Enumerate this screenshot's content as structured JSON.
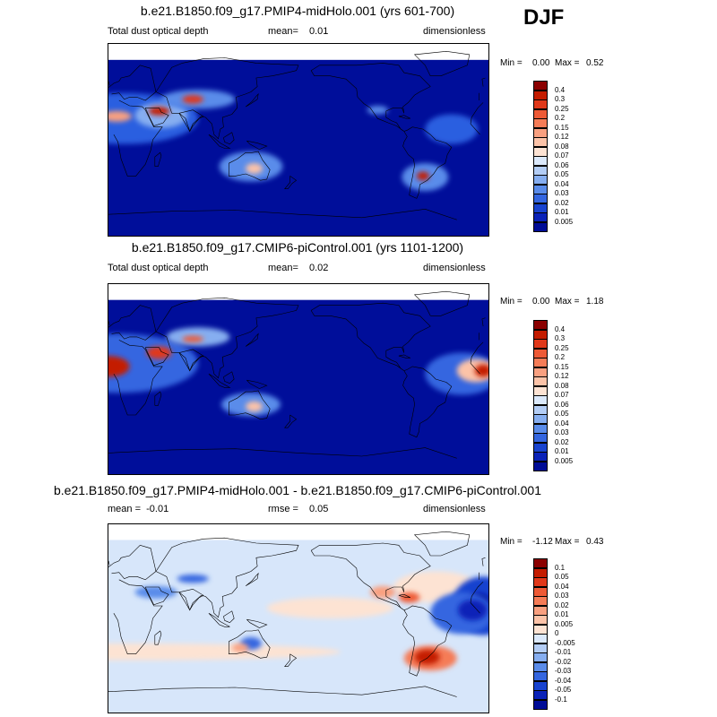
{
  "season": "DJF",
  "panels": [
    {
      "id": "midholo",
      "title": "b.e21.B1850.f09_g17.PMIP4-midHolo.001 (yrs 601-700)",
      "left_label": "Total dust optical depth",
      "center_label_key": "mean=",
      "center_label_value": "0.01",
      "right_label": "dimensionless",
      "min_label": "Min =",
      "min_value": "0.00",
      "max_label": "Max =",
      "max_value": "0.52",
      "colorbar": {
        "labels": [
          "0.4",
          "0.3",
          "0.25",
          "0.2",
          "0.15",
          "0.12",
          "0.08",
          "0.07",
          "0.06",
          "0.05",
          "0.04",
          "0.03",
          "0.02",
          "0.01",
          "0.005"
        ],
        "colors": [
          "#8b0000",
          "#c41c00",
          "#e0381a",
          "#ee5a36",
          "#f57c57",
          "#f9a080",
          "#fcc3a8",
          "#fde3d3",
          "#dbe9fb",
          "#b3cdf5",
          "#86aef0",
          "#5a8cea",
          "#3466e0",
          "#1843cf",
          "#0a22b8",
          "#000c96"
        ]
      },
      "map": {
        "background": "#000e9a",
        "plumes": [
          {
            "name": "sahara-plume",
            "lon": 15,
            "lat": 20,
            "rx": 70,
            "ry": 24,
            "color": "#2b5fe0"
          },
          {
            "name": "arabia-plume",
            "lon": 50,
            "lat": 23,
            "rx": 25,
            "ry": 12,
            "color": "#86aef0"
          },
          {
            "name": "arabia-core",
            "lon": 48,
            "lat": 27,
            "rx": 10,
            "ry": 4,
            "color": "#c41c00"
          },
          {
            "name": "sahara-core",
            "lon": 8,
            "lat": 22,
            "rx": 14,
            "ry": 5,
            "color": "#f9a080"
          },
          {
            "name": "asia-plume",
            "lon": 85,
            "lat": 38,
            "rx": 35,
            "ry": 9,
            "color": "#5a8cea"
          },
          {
            "name": "asia-core",
            "lon": 80,
            "lat": 38,
            "rx": 10,
            "ry": 4,
            "color": "#e0381a"
          },
          {
            "name": "australia-plume",
            "lon": 135,
            "lat": -25,
            "rx": 30,
            "ry": 14,
            "color": "#5a8cea"
          },
          {
            "name": "australia-core",
            "lon": 138,
            "lat": -27,
            "rx": 8,
            "ry": 5,
            "color": "#fcc3a8"
          },
          {
            "name": "patagonia-plume",
            "lon": -60,
            "lat": -35,
            "rx": 22,
            "ry": 13,
            "color": "#5a8cea"
          },
          {
            "name": "patagonia-core",
            "lon": -62,
            "lat": -34,
            "rx": 6,
            "ry": 4,
            "color": "#c41c00"
          },
          {
            "name": "atlantic-plume",
            "lon": -35,
            "lat": 10,
            "rx": 25,
            "ry": 14,
            "color": "#2b5fe0"
          },
          {
            "name": "mexico-plume",
            "lon": -105,
            "lat": 28,
            "rx": 10,
            "ry": 4,
            "color": "#5a8cea"
          }
        ]
      }
    },
    {
      "id": "picontrol",
      "title": "b.e21.B1850.f09_g17.CMIP6-piControl.001 (yrs 1101-1200)",
      "left_label": "Total dust optical depth",
      "center_label_key": "mean=",
      "center_label_value": "0.02",
      "right_label": "dimensionless",
      "min_label": "Min =",
      "min_value": "0.00",
      "max_label": "Max =",
      "max_value": "1.18",
      "colorbar": {
        "labels": [
          "0.4",
          "0.3",
          "0.25",
          "0.2",
          "0.15",
          "0.12",
          "0.08",
          "0.07",
          "0.06",
          "0.05",
          "0.04",
          "0.03",
          "0.02",
          "0.01",
          "0.005"
        ],
        "colors": [
          "#8b0000",
          "#c41c00",
          "#e0381a",
          "#ee5a36",
          "#f57c57",
          "#f9a080",
          "#fcc3a8",
          "#fde3d3",
          "#dbe9fb",
          "#b3cdf5",
          "#86aef0",
          "#5a8cea",
          "#3466e0",
          "#1843cf",
          "#0a22b8",
          "#000c96"
        ]
      },
      "map": {
        "background": "#000e9a",
        "plumes": [
          {
            "name": "sahara-plume",
            "lon": 10,
            "lat": 15,
            "rx": 75,
            "ry": 28,
            "color": "#3466e0"
          },
          {
            "name": "sahara-core",
            "lon": 0,
            "lat": 12,
            "rx": 20,
            "ry": 10,
            "color": "#c41c00"
          },
          {
            "name": "sahara-center",
            "lon": -5,
            "lat": 10,
            "rx": 12,
            "ry": 7,
            "color": "#8b0000"
          },
          {
            "name": "arabia-core",
            "lon": 48,
            "lat": 25,
            "rx": 12,
            "ry": 6,
            "color": "#e0381a"
          },
          {
            "name": "asia-plume",
            "lon": 85,
            "lat": 40,
            "rx": 30,
            "ry": 9,
            "color": "#86aef0"
          },
          {
            "name": "asia-core",
            "lon": 80,
            "lat": 38,
            "rx": 10,
            "ry": 3,
            "color": "#ee5a36"
          },
          {
            "name": "australia-plume",
            "lon": 135,
            "lat": -24,
            "rx": 28,
            "ry": 11,
            "color": "#5a8cea"
          },
          {
            "name": "australia-core",
            "lon": 138,
            "lat": -26,
            "rx": 8,
            "ry": 5,
            "color": "#fcc3a8"
          },
          {
            "name": "atlantic-plume",
            "lon": -25,
            "lat": 5,
            "rx": 35,
            "ry": 20,
            "color": "#3466e0"
          },
          {
            "name": "atlantic-inner",
            "lon": -12,
            "lat": 8,
            "rx": 18,
            "ry": 11,
            "color": "#fcc3a8"
          },
          {
            "name": "atlantic-core",
            "lon": -5,
            "lat": 8,
            "rx": 8,
            "ry": 6,
            "color": "#c41c00"
          }
        ]
      }
    },
    {
      "id": "difference",
      "title": "b.e21.B1850.f09_g17.PMIP4-midHolo.001 - b.e21.B1850.f09_g17.CMIP6-piControl.001",
      "left_label": "mean =  -0.01",
      "center_label_key": "rmse =",
      "center_label_value": "0.05",
      "right_label": "dimensionless",
      "min_label": "Min =",
      "min_value": "-1.12",
      "max_label": "Max =",
      "max_value": "0.43",
      "colorbar": {
        "labels": [
          "0.1",
          "0.05",
          "0.04",
          "0.03",
          "0.02",
          "0.01",
          "0.005",
          "0",
          "-0.005",
          "-0.01",
          "-0.02",
          "-0.03",
          "-0.04",
          "-0.05",
          "-0.1"
        ],
        "colors": [
          "#8b0000",
          "#c41c00",
          "#e0381a",
          "#ee5a36",
          "#f57c57",
          "#f9a080",
          "#fcc3a8",
          "#fde3d3",
          "#dbe9fb",
          "#b3cdf5",
          "#86aef0",
          "#5a8cea",
          "#3466e0",
          "#1843cf",
          "#0a22b8",
          "#000c96"
        ]
      },
      "map": {
        "background": "#d7e6fa",
        "plumes": [
          {
            "name": "band-south",
            "lon": 20,
            "lat": -32,
            "rx": 200,
            "ry": 8,
            "color": "#fde3d3"
          },
          {
            "name": "band-north",
            "lon": -150,
            "lat": 10,
            "rx": 60,
            "ry": 10,
            "color": "#fde3d3"
          },
          {
            "name": "band-north-atl",
            "lon": -50,
            "lat": 30,
            "rx": 40,
            "ry": 15,
            "color": "#fde3d3"
          },
          {
            "name": "sahara-neg",
            "lon": -5,
            "lat": 12,
            "rx": 30,
            "ry": 28,
            "color": "#1843cf"
          },
          {
            "name": "sahara-neg-core",
            "lon": -10,
            "lat": 10,
            "rx": 14,
            "ry": 14,
            "color": "#000c96"
          },
          {
            "name": "atlantic-neg",
            "lon": -25,
            "lat": 5,
            "rx": 30,
            "ry": 20,
            "color": "#3466e0"
          },
          {
            "name": "atlantic-neg-core",
            "lon": -15,
            "lat": 8,
            "rx": 14,
            "ry": 10,
            "color": "#0a22b8"
          },
          {
            "name": "arabia-mixed",
            "lon": 45,
            "lat": 25,
            "rx": 20,
            "ry": 6,
            "color": "#5a8cea"
          },
          {
            "name": "asia-neg",
            "lon": 80,
            "lat": 38,
            "rx": 15,
            "ry": 4,
            "color": "#3466e0"
          },
          {
            "name": "australia-neg",
            "lon": 135,
            "lat": -24,
            "rx": 10,
            "ry": 6,
            "color": "#3466e0"
          },
          {
            "name": "australia-pos",
            "lon": 125,
            "lat": -28,
            "rx": 8,
            "ry": 4,
            "color": "#f9a080"
          },
          {
            "name": "patagonia-pos",
            "lon": -55,
            "lat": -38,
            "rx": 25,
            "ry": 12,
            "color": "#f57c57"
          },
          {
            "name": "patagonia-core",
            "lon": -58,
            "lat": -37,
            "rx": 12,
            "ry": 7,
            "color": "#c41c00"
          },
          {
            "name": "mexico-pos",
            "lon": -100,
            "lat": 25,
            "rx": 12,
            "ry": 6,
            "color": "#f9a080"
          },
          {
            "name": "caribbean-pos",
            "lon": -75,
            "lat": 20,
            "rx": 10,
            "ry": 5,
            "color": "#ee5a36"
          }
        ]
      }
    }
  ]
}
